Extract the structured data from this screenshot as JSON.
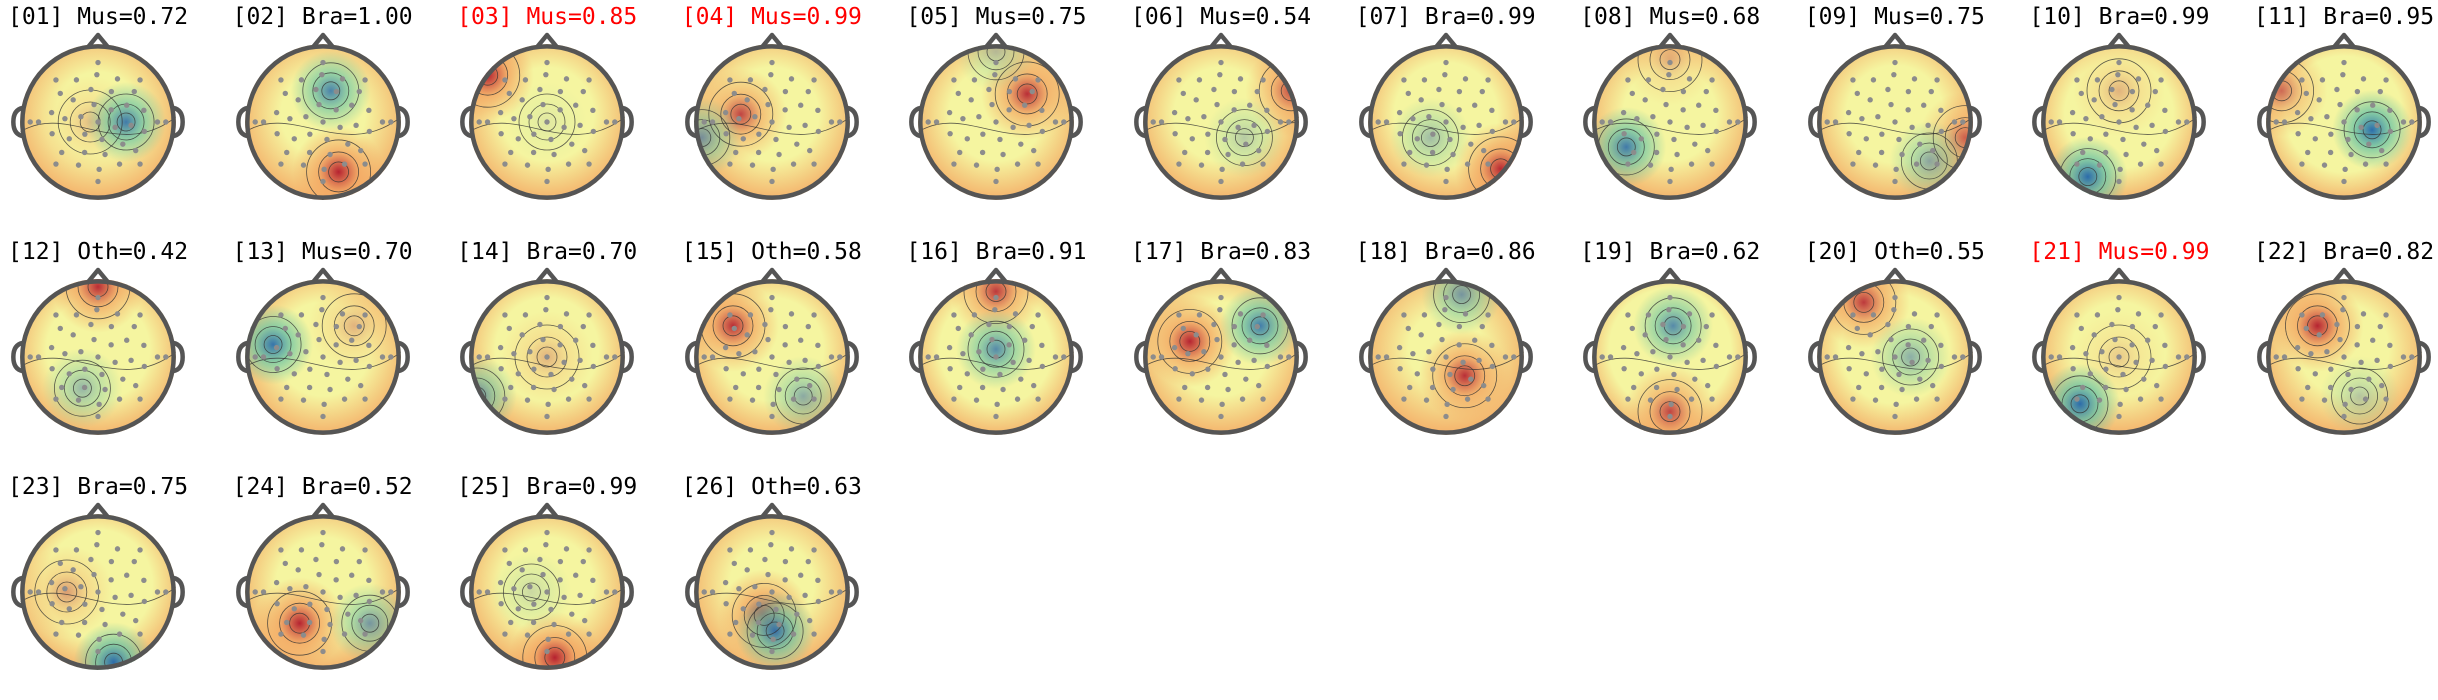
{
  "figure": {
    "components": [
      {
        "index": "01",
        "label": "Mus",
        "prob": "0.72",
        "flagged": false,
        "hot": [
          0.45,
          0.5,
          0.25
        ],
        "cold": [
          0.68,
          0.5,
          0.85
        ],
        "bg": 0.45
      },
      {
        "index": "02",
        "label": "Bra",
        "prob": "1.00",
        "flagged": false,
        "hot": [
          0.6,
          0.82,
          0.95
        ],
        "cold": [
          0.55,
          0.3,
          0.8
        ],
        "bg": 0.45
      },
      {
        "index": "03",
        "label": "Mus",
        "prob": "0.85",
        "flagged": true,
        "hot": [
          0.12,
          0.2,
          0.95
        ],
        "cold": [
          0.5,
          0.5,
          0.1
        ],
        "bg": 0.5
      },
      {
        "index": "04",
        "label": "Mus",
        "prob": "0.99",
        "flagged": true,
        "hot": [
          0.3,
          0.45,
          0.8
        ],
        "cold": [
          0.05,
          0.6,
          0.6
        ],
        "bg": 0.5
      },
      {
        "index": "05",
        "label": "Mus",
        "prob": "0.75",
        "flagged": false,
        "hot": [
          0.7,
          0.32,
          0.9
        ],
        "cold": [
          0.5,
          0.05,
          0.3
        ],
        "bg": 0.5
      },
      {
        "index": "06",
        "label": "Mus",
        "prob": "0.54",
        "flagged": false,
        "hot": [
          0.95,
          0.3,
          0.7
        ],
        "cold": [
          0.65,
          0.6,
          0.3
        ],
        "bg": 0.5
      },
      {
        "index": "07",
        "label": "Bra",
        "prob": "0.99",
        "flagged": false,
        "hot": [
          0.85,
          0.8,
          0.9
        ],
        "cold": [
          0.4,
          0.6,
          0.4
        ],
        "bg": 0.55
      },
      {
        "index": "08",
        "label": "Mus",
        "prob": "0.68",
        "flagged": false,
        "hot": [
          0.5,
          0.1,
          0.3
        ],
        "cold": [
          0.22,
          0.66,
          0.85
        ],
        "bg": 0.5
      },
      {
        "index": "09",
        "label": "Mus",
        "prob": "0.75",
        "flagged": false,
        "hot": [
          0.95,
          0.6,
          0.6
        ],
        "cold": [
          0.72,
          0.75,
          0.5
        ],
        "bg": 0.52
      },
      {
        "index": "10",
        "label": "Bra",
        "prob": "0.99",
        "flagged": false,
        "hot": [
          0.5,
          0.3,
          0.3
        ],
        "cold": [
          0.3,
          0.85,
          0.95
        ],
        "bg": 0.58
      },
      {
        "index": "11",
        "label": "Bra",
        "prob": "0.95",
        "flagged": false,
        "hot": [
          0.1,
          0.3,
          0.6
        ],
        "cold": [
          0.68,
          0.55,
          0.95
        ],
        "bg": 0.62
      },
      {
        "index": "12",
        "label": "Oth",
        "prob": "0.42",
        "flagged": false,
        "hot": [
          0.5,
          0.05,
          0.9
        ],
        "cold": [
          0.4,
          0.7,
          0.45
        ],
        "bg": 0.55
      },
      {
        "index": "13",
        "label": "Mus",
        "prob": "0.70",
        "flagged": false,
        "hot": [
          0.7,
          0.3,
          0.3
        ],
        "cold": [
          0.18,
          0.42,
          0.9
        ],
        "bg": 0.5
      },
      {
        "index": "14",
        "label": "Bra",
        "prob": "0.70",
        "flagged": false,
        "hot": [
          0.5,
          0.5,
          0.3
        ],
        "cold": [
          0.05,
          0.75,
          0.7
        ],
        "bg": 0.55
      },
      {
        "index": "15",
        "label": "Oth",
        "prob": "0.58",
        "flagged": false,
        "hot": [
          0.25,
          0.3,
          0.9
        ],
        "cold": [
          0.7,
          0.75,
          0.5
        ],
        "bg": 0.55
      },
      {
        "index": "16",
        "label": "Bra",
        "prob": "0.91",
        "flagged": false,
        "hot": [
          0.5,
          0.08,
          0.85
        ],
        "cold": [
          0.5,
          0.45,
          0.75
        ],
        "bg": 0.6
      },
      {
        "index": "17",
        "label": "Bra",
        "prob": "0.83",
        "flagged": false,
        "hot": [
          0.3,
          0.4,
          0.95
        ],
        "cold": [
          0.75,
          0.3,
          0.85
        ],
        "bg": 0.5
      },
      {
        "index": "18",
        "label": "Bra",
        "prob": "0.86",
        "flagged": false,
        "hot": [
          0.62,
          0.62,
          0.9
        ],
        "cold": [
          0.6,
          0.1,
          0.6
        ],
        "bg": 0.4
      },
      {
        "index": "19",
        "label": "Bra",
        "prob": "0.62",
        "flagged": false,
        "hot": [
          0.5,
          0.85,
          0.8
        ],
        "cold": [
          0.52,
          0.3,
          0.75
        ],
        "bg": 0.65
      },
      {
        "index": "20",
        "label": "Oth",
        "prob": "0.55",
        "flagged": false,
        "hot": [
          0.3,
          0.15,
          0.85
        ],
        "cold": [
          0.6,
          0.5,
          0.5
        ],
        "bg": 0.58
      },
      {
        "index": "21",
        "label": "Mus",
        "prob": "0.99",
        "flagged": true,
        "hot": [
          0.5,
          0.5,
          0.2
        ],
        "cold": [
          0.25,
          0.8,
          0.95
        ],
        "bg": 0.5
      },
      {
        "index": "22",
        "label": "Bra",
        "prob": "0.82",
        "flagged": false,
        "hot": [
          0.33,
          0.3,
          0.95
        ],
        "cold": [
          0.6,
          0.75,
          0.3
        ],
        "bg": 0.48
      },
      {
        "index": "23",
        "label": "Bra",
        "prob": "0.75",
        "flagged": false,
        "hot": [
          0.3,
          0.5,
          0.4
        ],
        "cold": [
          0.6,
          0.95,
          0.95
        ],
        "bg": 0.58
      },
      {
        "index": "24",
        "label": "Bra",
        "prob": "0.52",
        "flagged": false,
        "hot": [
          0.35,
          0.7,
          0.95
        ],
        "cold": [
          0.8,
          0.7,
          0.6
        ],
        "bg": 0.5
      },
      {
        "index": "25",
        "label": "Bra",
        "prob": "0.99",
        "flagged": false,
        "hot": [
          0.55,
          0.92,
          0.95
        ],
        "cold": [
          0.4,
          0.5,
          0.2
        ],
        "bg": 0.5
      },
      {
        "index": "26",
        "label": "Oth",
        "prob": "0.63",
        "flagged": false,
        "hot": [
          0.45,
          0.65,
          0.95
        ],
        "cold": [
          0.52,
          0.75,
          0.9
        ],
        "bg": 0.45
      }
    ]
  },
  "colors": {
    "text": "#000000",
    "flagged_text": "#ff0000",
    "head_outline": "#555555",
    "electrode": "#8c8c8c",
    "map_hot": "#b2182b",
    "map_warm": "#f4a460",
    "map_neutral": "#f5f5a0",
    "map_cool": "#66c2a5",
    "map_cold": "#2166ac"
  }
}
